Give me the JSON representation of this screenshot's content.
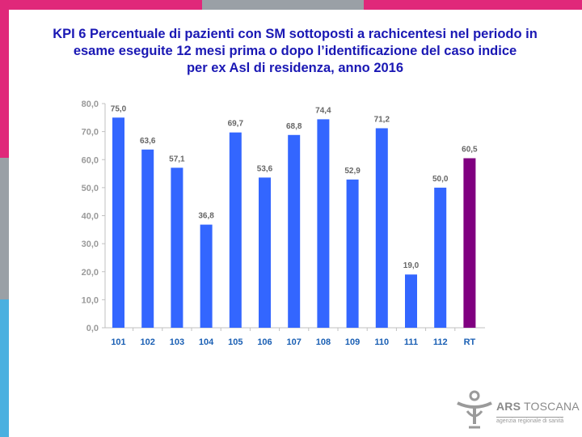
{
  "title": {
    "line1": "KPI 6 Percentuale di pazienti con SM sottoposti a rachicentesi nel periodo in",
    "line2": "esame eseguite 12 mesi prima o dopo l’identificazione del caso indice",
    "line3": "per ex Asl di residenza, anno 2016"
  },
  "colors": {
    "bar": "#3366ff",
    "highlight_bar": "#800080",
    "axis_text": "#9a9a9a",
    "label_text": "#666666",
    "category_text": "#1a5fb4",
    "top_strip": [
      "#e0287a",
      "#9aa0a6",
      "#e0287a"
    ],
    "left_strip": [
      "#e0287a",
      "#9aa0a6",
      "#4ab0e0"
    ]
  },
  "chart_data": {
    "type": "bar",
    "title": "KPI 6 Percentuale di pazienti con SM sottoposti a rachicentesi nel periodo in esame eseguite 12 mesi prima o dopo l’identificazione del caso indice per ex Asl di residenza, anno 2016",
    "categories": [
      "101",
      "102",
      "103",
      "104",
      "105",
      "106",
      "107",
      "108",
      "109",
      "110",
      "111",
      "112",
      "RT"
    ],
    "values": [
      75.0,
      63.6,
      57.1,
      36.8,
      69.7,
      53.6,
      68.8,
      74.4,
      52.9,
      71.2,
      19.0,
      50.0,
      60.5
    ],
    "value_labels": [
      "75,0",
      "63,6",
      "57,1",
      "36,8",
      "69,7",
      "53,6",
      "68,8",
      "74,4",
      "52,9",
      "71,2",
      "19,0",
      "50,0",
      "60,5"
    ],
    "highlight_category": "RT",
    "xlabel": "",
    "ylabel": "",
    "ylim": [
      0,
      80
    ],
    "yticks": [
      0,
      10,
      20,
      30,
      40,
      50,
      60,
      70,
      80
    ],
    "ytick_labels": [
      "0,0",
      "10,0",
      "20,0",
      "30,0",
      "40,0",
      "50,0",
      "60,0",
      "70,0",
      "80,0"
    ],
    "grid": false,
    "legend": "none"
  },
  "logo": {
    "name_bold": "ARS",
    "name_rest": " TOSCANA",
    "tagline": "agenzia regionale di sanità",
    "icon": "ars-figure-icon"
  }
}
